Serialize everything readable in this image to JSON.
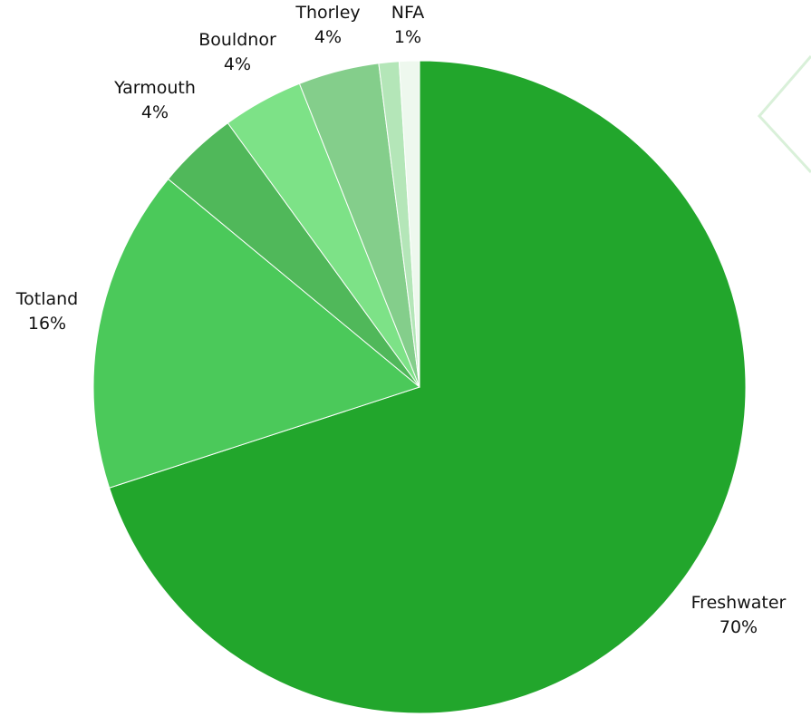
{
  "chart_data": {
    "type": "pie",
    "start_angle": "12 o'clock",
    "direction": "clockwise",
    "slices": [
      {
        "label": "Freshwater",
        "value": 70,
        "value_label": "70%",
        "color": "#22a62c"
      },
      {
        "label": "Totland",
        "value": 16,
        "value_label": "16%",
        "color": "#4bc95a"
      },
      {
        "label": "Yarmouth",
        "value": 4,
        "value_label": "4%",
        "color": "#50b85a"
      },
      {
        "label": "Bouldnor",
        "value": 4,
        "value_label": "4%",
        "color": "#7de287"
      },
      {
        "label": "Thorley",
        "value": 4,
        "value_label": "4%",
        "color": "#84ce8b"
      },
      {
        "label": "NFA",
        "value": 1,
        "value_label": "1%",
        "color": "#b4e6b8"
      },
      {
        "label": "",
        "value": 1,
        "value_label": "",
        "color": "#eef8ee"
      }
    ]
  },
  "decoration": {
    "outline_color": "#d9f0d9"
  }
}
